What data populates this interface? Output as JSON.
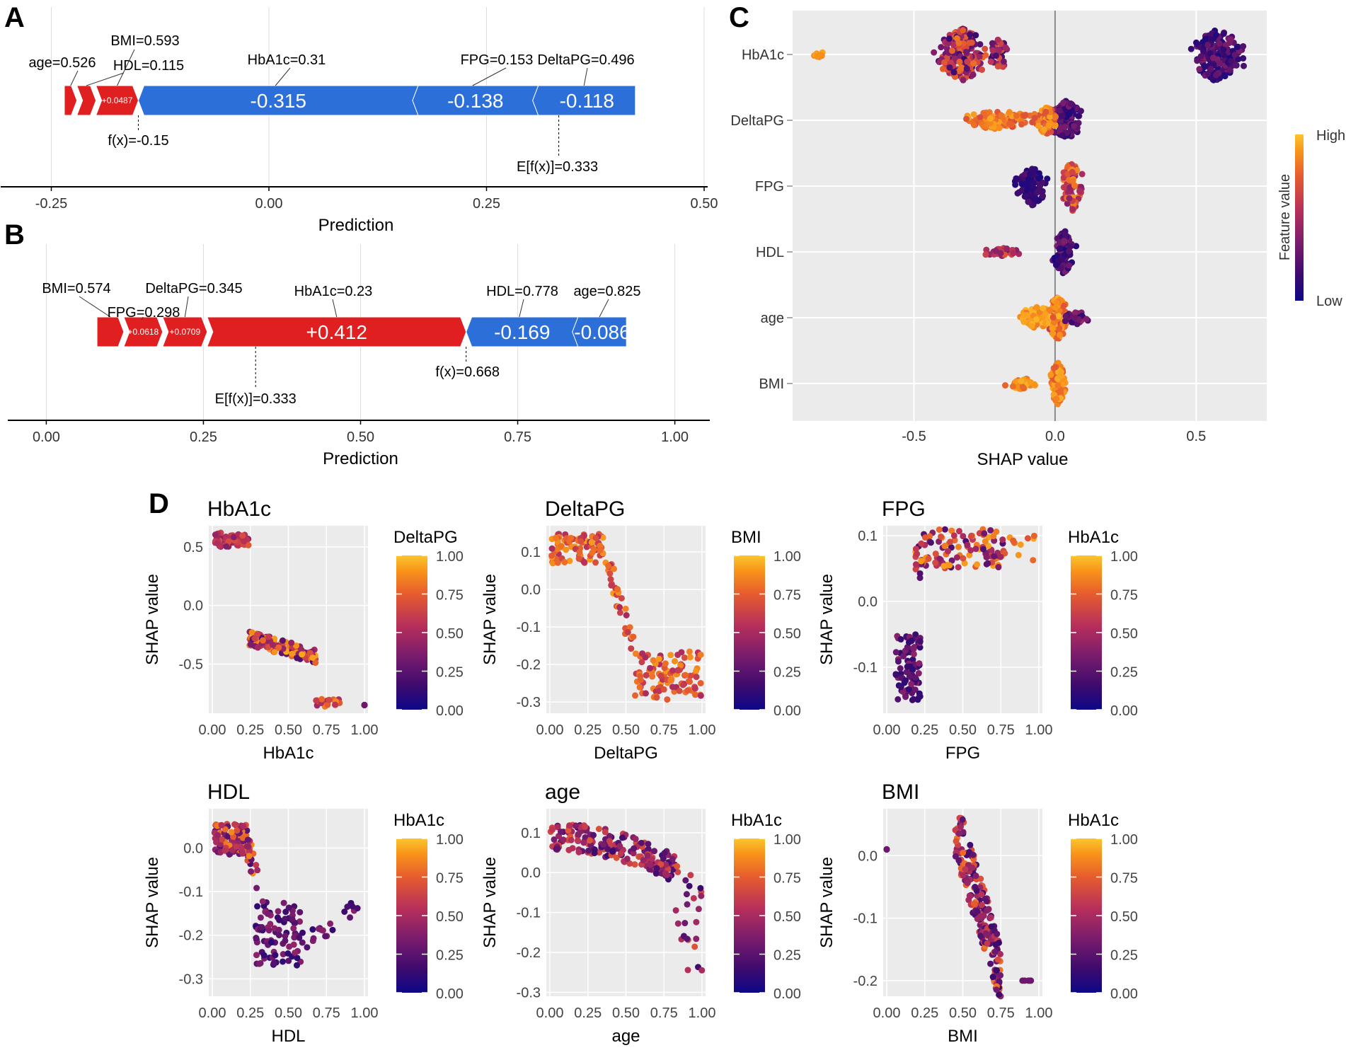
{
  "colors": {
    "red": "#e02020",
    "blue": "#2d6fd9",
    "panel_bg": "#ebebeb",
    "grid": "#ffffff",
    "low": "#2a0a5e",
    "high": "#fbc530"
  },
  "panel_labels": {
    "a": "A",
    "b": "B",
    "c": "C",
    "d": "D"
  },
  "chart_data": [
    {
      "id": "A",
      "type": "force",
      "xlabel": "Prediction",
      "xlim": [
        -0.3,
        0.5
      ],
      "ticks": [
        {
          "v": -0.25,
          "label": "-0.25"
        },
        {
          "v": 0,
          "label": "0.00"
        },
        {
          "v": 0.25,
          "label": "0.25"
        },
        {
          "v": 0.5,
          "label": "0.50"
        }
      ],
      "fx": -0.15,
      "fx_label": "f(x)=-0.15",
      "base": 0.333,
      "base_label": "E[f(x)]=0.333",
      "positive": [
        {
          "feature": "age=0.526",
          "value": 0.0144,
          "text": ""
        },
        {
          "feature": "HDL=0.115",
          "value": 0.0219,
          "text": ""
        },
        {
          "feature": "BMI=0.593",
          "value": 0.0487,
          "text": "+0.0487"
        }
      ],
      "negative": [
        {
          "feature": "HbA1c=0.31",
          "value": 0.315,
          "text": "-0.315"
        },
        {
          "feature": "FPG=0.153",
          "value": 0.138,
          "text": "-0.138"
        },
        {
          "feature": "DeltaPG=0.496",
          "value": 0.118,
          "text": "-0.118"
        }
      ]
    },
    {
      "id": "B",
      "type": "force",
      "xlabel": "Prediction",
      "xlim": [
        -0.05,
        1.05
      ],
      "ticks": [
        {
          "v": 0,
          "label": "0.00"
        },
        {
          "v": 0.25,
          "label": "0.25"
        },
        {
          "v": 0.5,
          "label": "0.50"
        },
        {
          "v": 0.75,
          "label": "0.75"
        },
        {
          "v": 1,
          "label": "1.00"
        }
      ],
      "fx": 0.668,
      "fx_label": "f(x)=0.668",
      "base": 0.333,
      "base_label": "E[f(x)]=0.333",
      "positive": [
        {
          "feature": "BMI=0.574",
          "value": 0.0426,
          "text": ""
        },
        {
          "feature": "FPG=0.298",
          "value": 0.0618,
          "text": "+0.0618"
        },
        {
          "feature": "DeltaPG=0.345",
          "value": 0.0709,
          "text": "+0.0709"
        },
        {
          "feature": "HbA1c=0.23",
          "value": 0.412,
          "text": "+0.412"
        }
      ],
      "negative": [
        {
          "feature": "HDL=0.778",
          "value": 0.169,
          "text": "-0.169"
        },
        {
          "feature": "age=0.825",
          "value": 0.086,
          "text": "-0.086"
        }
      ]
    },
    {
      "id": "C",
      "type": "beeswarm",
      "xlabel": "SHAP value",
      "xlim": [
        -0.93,
        0.75
      ],
      "ticks": [
        {
          "v": -0.5,
          "label": "-0.5"
        },
        {
          "v": 0,
          "label": "0.0"
        },
        {
          "v": 0.5,
          "label": "0.5"
        }
      ],
      "features": [
        "HbA1c",
        "DeltaPG",
        "FPG",
        "HDL",
        "age",
        "BMI"
      ],
      "legend_title": "Feature value",
      "legend_high": "High",
      "legend_low": "Low"
    },
    {
      "id": "D",
      "type": "scatter-grid",
      "ylabel": "SHAP value",
      "plots": [
        {
          "title": "HbA1c",
          "xlabel": "HbA1c",
          "color_by": "DeltaPG",
          "yrange": [
            -0.92,
            0.68
          ],
          "yticks": [
            {
              "v": 0.5,
              "label": "0.5"
            },
            {
              "v": 0,
              "label": "0.0"
            },
            {
              "v": -0.5,
              "label": "-0.5"
            }
          ]
        },
        {
          "title": "DeltaPG",
          "xlabel": "DeltaPG",
          "color_by": "BMI",
          "yrange": [
            -0.33,
            0.17
          ],
          "yticks": [
            {
              "v": 0.1,
              "label": "0.1"
            },
            {
              "v": 0,
              "label": "0.0"
            },
            {
              "v": -0.1,
              "label": "-0.1"
            },
            {
              "v": -0.2,
              "label": "-0.2"
            },
            {
              "v": -0.3,
              "label": "-0.3"
            }
          ]
        },
        {
          "title": "FPG",
          "xlabel": "FPG",
          "color_by": "HbA1c",
          "yrange": [
            -0.17,
            0.115
          ],
          "yticks": [
            {
              "v": 0.1,
              "label": "0.1"
            },
            {
              "v": 0,
              "label": "0.0"
            },
            {
              "v": -0.1,
              "label": "-0.1"
            }
          ]
        },
        {
          "title": "HDL",
          "xlabel": "HDL",
          "color_by": "HbA1c",
          "yrange": [
            -0.34,
            0.09
          ],
          "yticks": [
            {
              "v": 0,
              "label": "0.0"
            },
            {
              "v": -0.1,
              "label": "-0.1"
            },
            {
              "v": -0.2,
              "label": "-0.2"
            },
            {
              "v": -0.3,
              "label": "-0.3"
            }
          ]
        },
        {
          "title": "age",
          "xlabel": "age",
          "color_by": "HbA1c",
          "yrange": [
            -0.31,
            0.16
          ],
          "yticks": [
            {
              "v": 0.1,
              "label": "0.1"
            },
            {
              "v": 0,
              "label": "0.0"
            },
            {
              "v": -0.1,
              "label": "-0.1"
            },
            {
              "v": -0.2,
              "label": "-0.2"
            },
            {
              "v": -0.3,
              "label": "-0.3"
            }
          ]
        },
        {
          "title": "BMI",
          "xlabel": "BMI",
          "color_by": "HbA1c",
          "yrange": [
            -0.225,
            0.075
          ],
          "yticks": [
            {
              "v": 0,
              "label": "0.0"
            },
            {
              "v": -0.1,
              "label": "-0.1"
            },
            {
              "v": -0.2,
              "label": "-0.2"
            }
          ]
        }
      ],
      "xticks": [
        "0.00",
        "0.25",
        "0.50",
        "0.75",
        "1.00"
      ],
      "colorbar_ticks": [
        "1.00",
        "0.75",
        "0.50",
        "0.25",
        "0.00"
      ]
    }
  ]
}
